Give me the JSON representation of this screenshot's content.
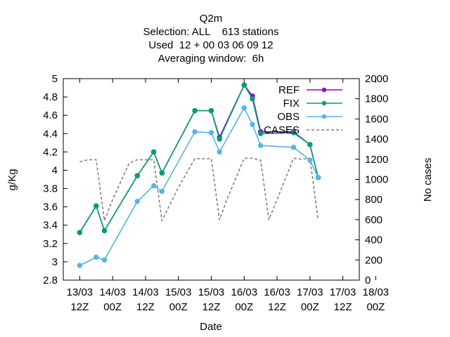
{
  "chart_data": {
    "type": "line",
    "title_lines": [
      "Q2m",
      "Selection: ALL    613 stations",
      "Used  12 + 00 03 06 09 12",
      "Averaging window:  6h"
    ],
    "xlabel": "Date",
    "ylabel": "g/Kg",
    "y2label": "No cases",
    "x_ticks": [
      {
        "line1": "13/03",
        "line2": "12Z"
      },
      {
        "line1": "14/03",
        "line2": "00Z"
      },
      {
        "line1": "14/03",
        "line2": "12Z"
      },
      {
        "line1": "15/03",
        "line2": "00Z"
      },
      {
        "line1": "15/03",
        "line2": "12Z"
      },
      {
        "line1": "16/03",
        "line2": "00Z"
      },
      {
        "line1": "16/03",
        "line2": "12Z"
      },
      {
        "line1": "17/03",
        "line2": "00Z"
      },
      {
        "line1": "17/03",
        "line2": "12Z"
      },
      {
        "line1": "18/03",
        "line2": "00Z"
      }
    ],
    "xlim_hours": [
      -6,
      102
    ],
    "ylim": [
      2.8,
      5.0
    ],
    "y_ticks": [
      "2.8",
      "3",
      "3.2",
      "3.4",
      "3.6",
      "3.8",
      "4",
      "4.2",
      "4.4",
      "4.6",
      "4.8",
      "5"
    ],
    "y2lim": [
      0,
      2000
    ],
    "y2_ticks": [
      "0",
      "200",
      "400",
      "600",
      "800",
      "1000",
      "1200",
      "1400",
      "1600",
      "1800",
      "2000"
    ],
    "legend_position": "top-right",
    "series": [
      {
        "name": "REF",
        "color": "#9400d3",
        "style": "solid",
        "marker": "plus",
        "x": [
          0,
          6,
          9,
          21,
          27,
          30,
          42,
          48,
          51,
          60,
          63,
          66,
          78,
          84,
          87
        ],
        "y": [
          3.32,
          3.61,
          3.34,
          3.94,
          4.2,
          3.97,
          4.65,
          4.65,
          4.36,
          4.93,
          4.81,
          4.42,
          4.42,
          4.28,
          3.92
        ]
      },
      {
        "name": "FIX",
        "color": "#009e73",
        "style": "solid",
        "marker": "plus",
        "x": [
          0,
          6,
          9,
          21,
          27,
          30,
          42,
          48,
          51,
          60,
          63,
          66,
          78,
          84,
          87
        ],
        "y": [
          3.32,
          3.61,
          3.34,
          3.94,
          4.2,
          3.97,
          4.65,
          4.65,
          4.34,
          4.93,
          4.78,
          4.4,
          4.41,
          4.28,
          3.92
        ]
      },
      {
        "name": "OBS",
        "color": "#56b4e9",
        "style": "solid",
        "marker": "plus",
        "x": [
          0,
          6,
          9,
          21,
          27,
          30,
          42,
          48,
          51,
          60,
          63,
          66,
          78,
          84,
          87
        ],
        "y": [
          2.96,
          3.05,
          3.02,
          3.66,
          3.83,
          3.77,
          4.42,
          4.41,
          4.2,
          4.68,
          4.5,
          4.27,
          4.25,
          4.11,
          3.92
        ]
      },
      {
        "name": "CASES",
        "color": "#7f7f7f",
        "style": "dashed",
        "marker": "none",
        "axis": "y2",
        "x": [
          0,
          3,
          6,
          9,
          12,
          18,
          21,
          24,
          27,
          30,
          36,
          42,
          45,
          48,
          51,
          54,
          60,
          63,
          66,
          69,
          72,
          78,
          81,
          84,
          87
        ],
        "y": [
          1175,
          1195,
          1195,
          590,
          800,
          1160,
          1195,
          1195,
          1195,
          590,
          920,
          1205,
          1205,
          1205,
          600,
          820,
          1210,
          1210,
          1190,
          600,
          800,
          1210,
          1200,
          1210,
          595
        ]
      }
    ]
  }
}
